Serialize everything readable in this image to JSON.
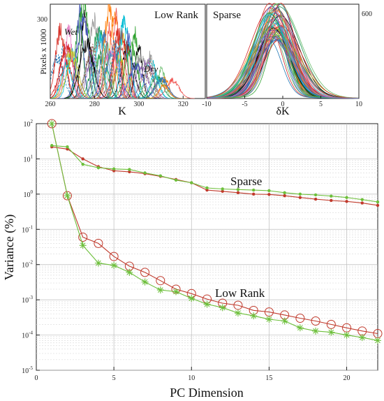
{
  "chart_data": [
    {
      "type": "line",
      "panel": "inset-left",
      "title": "Low Rank",
      "xlabel": "K",
      "ylabel": "Pixels x 1000",
      "xlim": [
        260,
        330
      ],
      "xticks": [
        "260",
        "280",
        "300",
        "320"
      ],
      "yticks": [
        "300"
      ],
      "annotations": [
        "Wet",
        "Dry"
      ],
      "peak_centers_K": [
        266,
        270,
        275,
        279,
        283,
        287,
        290,
        294,
        298,
        303,
        308,
        313
      ],
      "peak_heights_k": [
        250,
        240,
        360,
        300,
        280,
        330,
        260,
        300,
        240,
        180,
        150,
        100
      ]
    },
    {
      "type": "line",
      "panel": "inset-right",
      "title": "Sparse",
      "xlabel": "δK",
      "xlim": [
        -10,
        10
      ],
      "xticks": [
        "-10",
        "-5",
        "0",
        "5",
        "10"
      ],
      "yticks": [
        "600"
      ],
      "peak_center": -1,
      "peak_height": 600
    },
    {
      "type": "line",
      "panel": "main",
      "xlabel": "PC Dimension",
      "ylabel": "Variance (%)",
      "log_y": true,
      "xlim": [
        0,
        22
      ],
      "ylim": [
        1e-05,
        100
      ],
      "grid": true,
      "xticks": [
        "0",
        "5",
        "10",
        "15",
        "20"
      ],
      "yticks_exp": [
        2,
        1,
        0,
        -1,
        -2,
        -3,
        -4,
        -5
      ],
      "annotations": [
        "Sparse",
        "Low Rank"
      ],
      "series": [
        {
          "color": "#c0392b",
          "marker": "dot",
          "x": [
            1,
            2,
            3,
            4,
            5,
            6,
            7,
            8,
            9,
            10,
            11,
            12,
            13,
            14,
            15,
            16,
            17,
            18,
            19,
            20,
            21,
            22
          ],
          "y": [
            22,
            19,
            10,
            6,
            4.6,
            4.3,
            3.8,
            3.2,
            2.6,
            2.1,
            1.3,
            1.2,
            1.1,
            1.0,
            0.98,
            0.9,
            0.8,
            0.72,
            0.66,
            0.62,
            0.56,
            0.48
          ]
        },
        {
          "color": "#6dbf3b",
          "marker": "dot",
          "x": [
            1,
            2,
            3,
            4,
            5,
            6,
            7,
            8,
            9,
            10,
            11,
            12,
            13,
            14,
            15,
            16,
            17,
            18,
            19,
            20,
            21,
            22
          ],
          "y": [
            24,
            22,
            7,
            5.6,
            5.2,
            5.0,
            4.0,
            3.3,
            2.5,
            2.1,
            1.5,
            1.4,
            1.35,
            1.3,
            1.25,
            1.1,
            1.0,
            0.95,
            0.88,
            0.8,
            0.7,
            0.6
          ]
        },
        {
          "color": "#c0392b",
          "marker": "circle",
          "x": [
            1,
            2,
            3,
            4,
            5,
            6,
            7,
            8,
            9,
            10,
            11,
            12,
            13,
            14,
            15,
            16,
            17,
            18,
            19,
            20,
            21,
            22
          ],
          "y": [
            100,
            0.9,
            0.06,
            0.04,
            0.017,
            0.009,
            0.006,
            0.0035,
            0.002,
            0.0015,
            0.00105,
            0.0008,
            0.0007,
            0.0005,
            0.00045,
            0.00037,
            0.0003,
            0.00025,
            0.0002,
            0.00016,
            0.00013,
            0.00011
          ]
        },
        {
          "color": "#6dbf3b",
          "marker": "star",
          "x": [
            1,
            2,
            3,
            4,
            5,
            6,
            7,
            8,
            9,
            10,
            11,
            12,
            13,
            14,
            15,
            16,
            17,
            18,
            19,
            20,
            21,
            22
          ],
          "y": [
            100,
            0.9,
            0.035,
            0.011,
            0.0095,
            0.006,
            0.0032,
            0.0019,
            0.0017,
            0.0011,
            0.00075,
            0.0006,
            0.00042,
            0.00035,
            0.00028,
            0.00025,
            0.00016,
            0.00013,
            0.00012,
            0.0001,
            8.5e-05,
            7e-05
          ]
        }
      ]
    }
  ]
}
